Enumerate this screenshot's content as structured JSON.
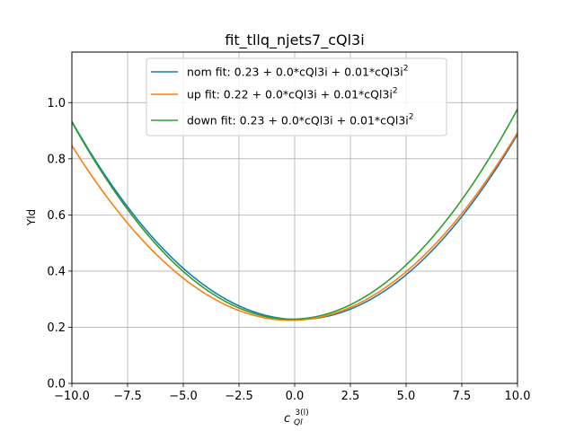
{
  "chart_data": {
    "type": "line",
    "title": "fit_tllq_njets7_cQl3i",
    "xlabel": "c_{Ql}^{3(l)}",
    "xlabel_main": "c",
    "xlabel_sub": "Ql",
    "xlabel_sup": "3(l)",
    "ylabel": "Yld",
    "xlim": [
      -10,
      10
    ],
    "ylim": [
      0,
      1.18
    ],
    "xticks": [
      -10,
      -7.5,
      -5,
      -2.5,
      0,
      2.5,
      5,
      7.5,
      10
    ],
    "xtick_labels": [
      "−10.0",
      "−7.5",
      "−5.0",
      "−2.5",
      "0.0",
      "2.5",
      "5.0",
      "7.5",
      "10.0"
    ],
    "yticks": [
      0,
      0.2,
      0.4,
      0.6,
      0.8,
      1.0
    ],
    "ytick_labels": [
      "0.0",
      "0.2",
      "0.4",
      "0.6",
      "0.8",
      "1.0"
    ],
    "grid": true,
    "legend_position": "top-center",
    "series": [
      {
        "name": "nom fit: 0.23 + 0.0*cQl3i + 0.01*cQl3i^2",
        "label_text": "nom fit: 0.23 + 0.0*cQl3i + 0.01*cQl3i",
        "label_sup": "2",
        "color": "#1f77b4",
        "coeffs": [
          0.2278,
          -0.0023,
          0.00682
        ]
      },
      {
        "name": "up fit: 0.22 + 0.0*cQl3i + 0.01*cQl3i^2",
        "label_text": "up fit: 0.22 + 0.0*cQl3i + 0.01*cQl3i",
        "label_sup": "2",
        "color": "#ff7f0e",
        "coeffs": [
          0.225,
          0.0023,
          0.00645
        ]
      },
      {
        "name": "down fit: 0.23 + 0.0*cQl3i + 0.01*cQl3i^2",
        "label_text": "down fit: 0.23 + 0.0*cQl3i + 0.01*cQl3i",
        "label_sup": "2",
        "color": "#2ca02c",
        "coeffs": [
          0.229,
          0.0023,
          0.00725
        ]
      }
    ]
  }
}
